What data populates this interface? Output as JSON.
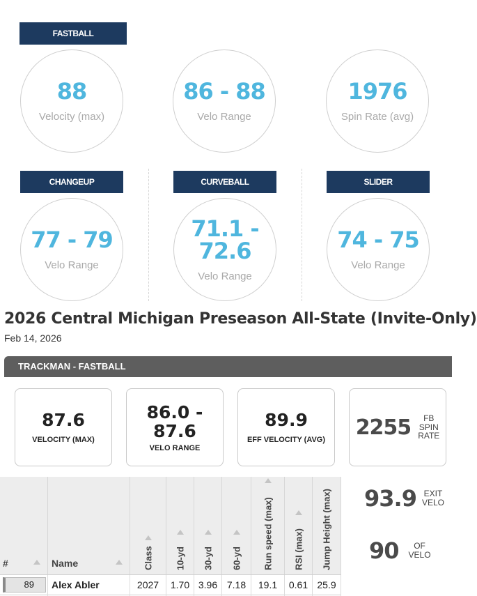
{
  "pitch_tags": {
    "fastball": "FASTBALL",
    "changeup": "CHANGEUP",
    "curveball": "CURVEBALL",
    "slider": "SLIDER"
  },
  "fastball": {
    "velocity_max": {
      "value": "88",
      "label": "Velocity (max)"
    },
    "velo_range": {
      "value": "86 - 88",
      "label": "Velo Range"
    },
    "spin_rate": {
      "value": "1976",
      "label": "Spin Rate (avg)"
    }
  },
  "changeup": {
    "value": "77 - 79",
    "label": "Velo Range"
  },
  "curveball": {
    "value": "71.1 - 72.6",
    "label": "Velo Range"
  },
  "slider": {
    "value": "74 - 75",
    "label": "Velo Range"
  },
  "event": {
    "title": "2026 Central Michigan Preseason All-State (Invite-Only)",
    "date": "Feb 14, 2026"
  },
  "trackman": {
    "header": "TRACKMAN - FASTBALL",
    "velocity_max": {
      "value": "87.6",
      "label": "VELOCITY (MAX)"
    },
    "velo_range": {
      "value": "86.0 -\n87.6",
      "label": "VELO RANGE"
    },
    "eff_velocity": {
      "value": "89.9",
      "label": "EFF VELOCITY (AVG)"
    },
    "fb_spin": {
      "value": "2255",
      "label": "FB\nSPIN\nRATE"
    }
  },
  "side_stats": {
    "exit_velo": {
      "value": "93.9",
      "label": "EXIT\nVELO"
    },
    "of_velo": {
      "value": "90",
      "label": "OF\nVELO"
    }
  },
  "table": {
    "headers": {
      "num": "#",
      "name": "Name",
      "class": "Class",
      "ten_yd": "10-yd",
      "thirty_yd": "30-yd",
      "sixty_yd": "60-yd",
      "run_speed": "Run speed (max)",
      "rsi": "RSI (max)",
      "jump": "Jump Height (max)"
    },
    "row": {
      "num": "89",
      "name": "Alex Abler",
      "class": "2027",
      "ten_yd": "1.70",
      "thirty_yd": "3.96",
      "sixty_yd": "7.18",
      "run_speed": "19.1",
      "rsi": "0.61",
      "jump": "25.9"
    }
  }
}
